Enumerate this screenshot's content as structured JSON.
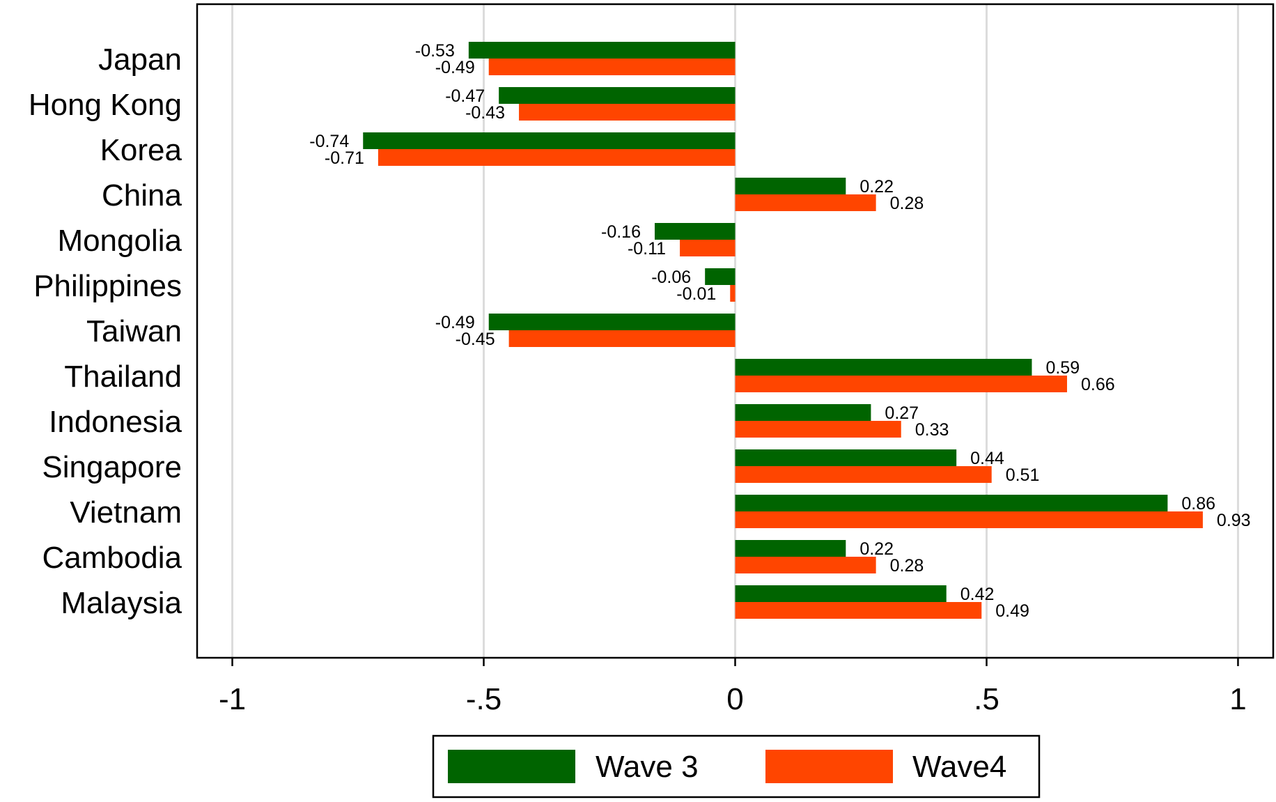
{
  "chart_data": {
    "type": "bar",
    "orientation": "horizontal",
    "title": "",
    "xlabel": "",
    "ylabel": "",
    "categories": [
      "Japan",
      "Hong Kong",
      "Korea",
      "China",
      "Mongolia",
      "Philippines",
      "Taiwan",
      "Thailand",
      "Indonesia",
      "Singapore",
      "Vietnam",
      "Cambodia",
      "Malaysia"
    ],
    "series": [
      {
        "name": "Wave 3",
        "color": "#006400",
        "values": [
          -0.53,
          -0.47,
          -0.74,
          0.22,
          -0.16,
          -0.06,
          -0.49,
          0.59,
          0.27,
          0.44,
          0.86,
          0.22,
          0.42
        ]
      },
      {
        "name": "Wave4",
        "color": "#ff4500",
        "values": [
          -0.49,
          -0.43,
          -0.71,
          0.28,
          -0.11,
          -0.01,
          -0.45,
          0.66,
          0.33,
          0.51,
          0.93,
          0.28,
          0.49
        ]
      }
    ],
    "data_labels": [
      [
        "-0.53",
        "-0.47",
        "-0.74",
        "0.22",
        "-0.16",
        "-0.06",
        "-0.49",
        "0.59",
        "0.27",
        "0.44",
        "0.86",
        "0.22",
        "0.42"
      ],
      [
        "-0.49",
        "-0.43",
        "-0.71",
        "0.28",
        "-0.11",
        "-0.01",
        "-0.45",
        "0.66",
        "0.33",
        "0.51",
        "0.93",
        "0.28",
        "0.49"
      ]
    ],
    "xlim": [
      -1.07,
      1.07
    ],
    "xticks": [
      -1,
      -0.5,
      0,
      0.5,
      1
    ],
    "xtick_labels": [
      "-1",
      "-.5",
      "0",
      ".5",
      "1"
    ],
    "grid": "vertical",
    "legend_position": "bottom"
  }
}
